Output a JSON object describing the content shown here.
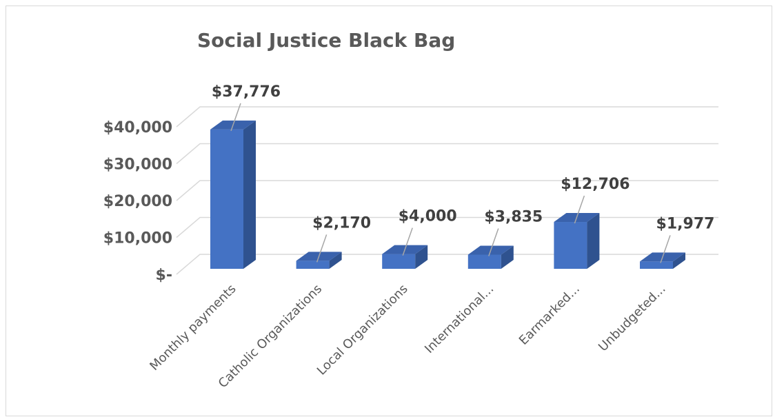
{
  "chart_data": {
    "type": "bar",
    "title": "Social Justice Black Bag",
    "categories": [
      "Monthly payments",
      "Catholic Organizations",
      "Local Organizations",
      "International...",
      "Earmarked...",
      "Unbudgeted..."
    ],
    "values": [
      37776,
      2170,
      4000,
      3835,
      12706,
      1977
    ],
    "data_labels": [
      "$37,776",
      "$2,170",
      "$4,000",
      "$3,835",
      "$12,706",
      "$1,977"
    ],
    "y_ticks": [
      {
        "value": 0,
        "label": "$-"
      },
      {
        "value": 10000,
        "label": "$10,000"
      },
      {
        "value": 20000,
        "label": "$20,000"
      },
      {
        "value": 30000,
        "label": "$30,000"
      },
      {
        "value": 40000,
        "label": "$40,000"
      }
    ],
    "ylim": [
      0,
      40000
    ],
    "xlabel": "",
    "ylabel": "",
    "grid": true,
    "legend": "none",
    "style": "3d-column",
    "colors": {
      "bar_front": "#4472c4",
      "bar_side": "#2f528f",
      "bar_top": "#3a62ac",
      "grid": "#d9d9d9",
      "leader_line": "#a6a6a6"
    }
  }
}
